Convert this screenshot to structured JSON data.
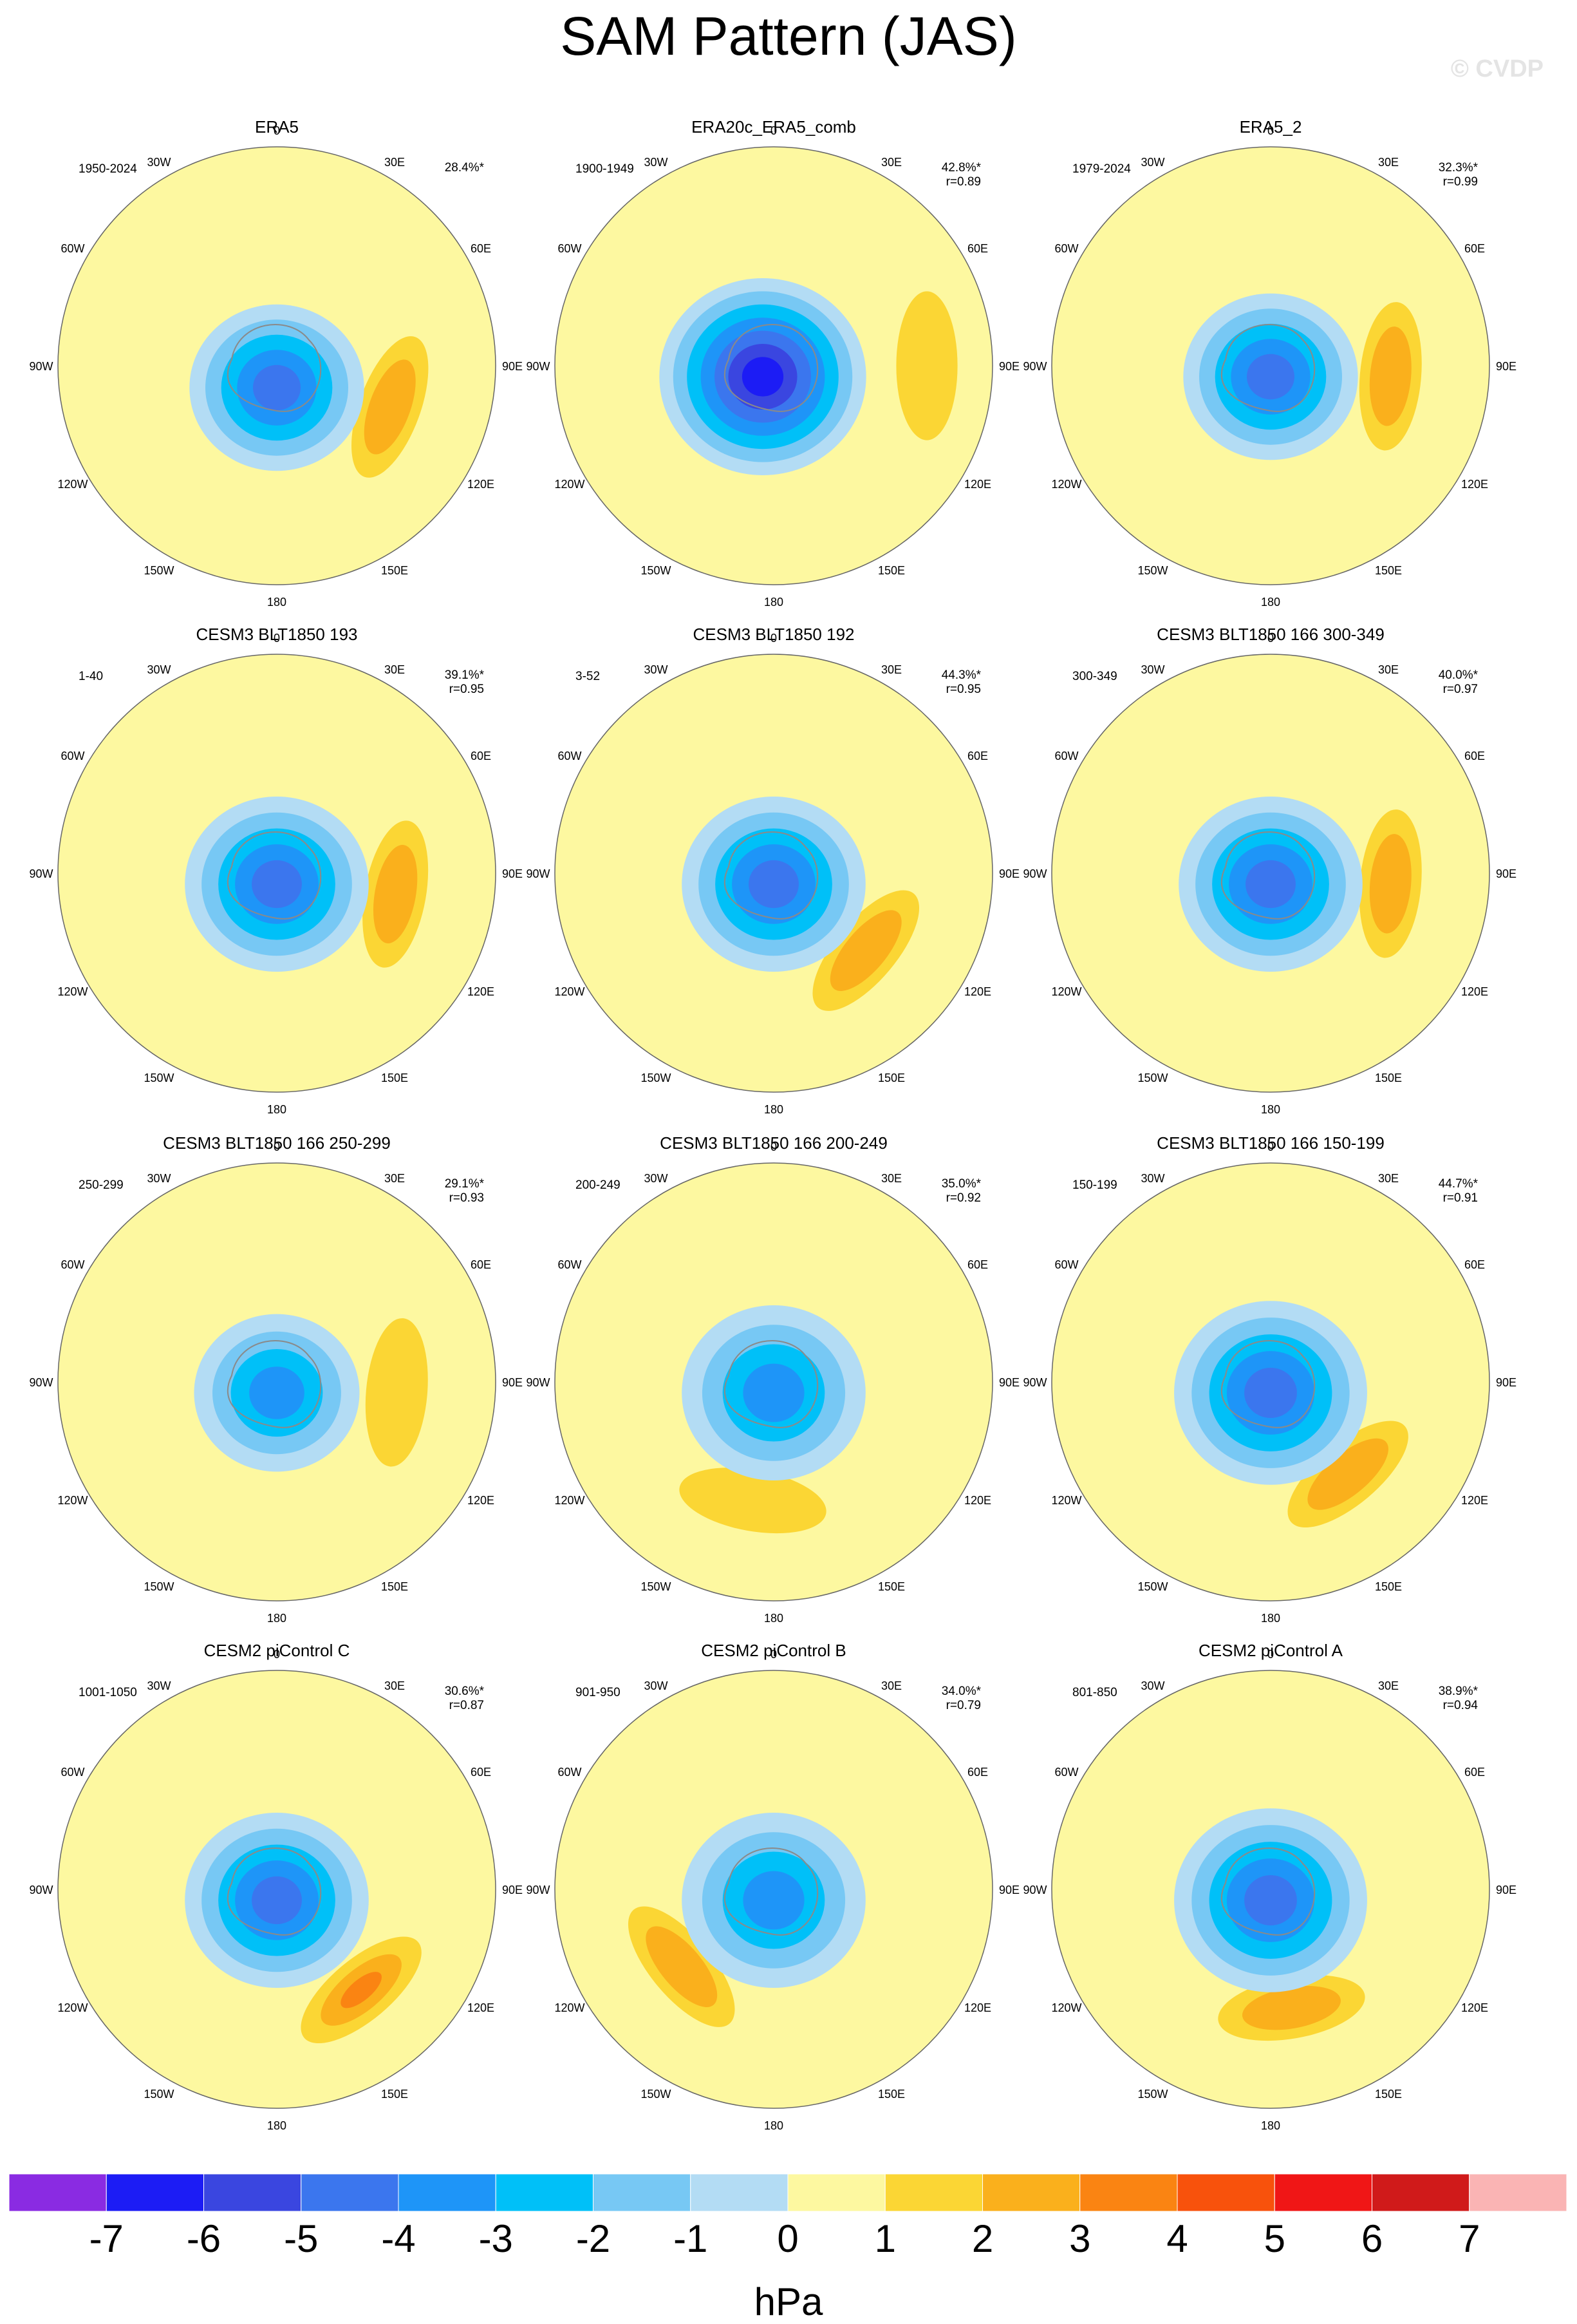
{
  "title": "SAM Pattern (JAS)",
  "credit": "© CVDP",
  "colors": {
    "levels": [
      "#8a2be2",
      "#1c1cf5",
      "#3a46e0",
      "#3b76ee",
      "#1e95f8",
      "#00c0f8",
      "#77c8f4",
      "#b3dcf4",
      "#fdf8a0",
      "#fbd634",
      "#fab01c",
      "#fa8412",
      "#f8520c",
      "#f01616",
      "#d01a1a",
      "#fab4b4"
    ],
    "coast": "#8a8a8a",
    "grid": "#666666"
  },
  "chart_data": {
    "type": "polar-contour",
    "units": "hPa",
    "colorbar": {
      "ticks": [
        "-7",
        "-6",
        "-5",
        "-4",
        "-3",
        "-2",
        "-1",
        "0",
        "1",
        "2",
        "3",
        "4",
        "5",
        "6",
        "7"
      ],
      "unit_label": "hPa"
    },
    "lon_labels": [
      "0",
      "30E",
      "60E",
      "90E",
      "120E",
      "150E",
      "180",
      "150W",
      "120W",
      "90W",
      "60W",
      "30W"
    ],
    "panels": [
      {
        "name": "ERA5",
        "years": "1950-2024",
        "pct": "28.4%*",
        "r": "",
        "low": {
          "x": 0.0,
          "y": 0.1,
          "r": 0.38,
          "min": -4
        },
        "high": {
          "ang": 110,
          "dist": 0.55,
          "max": 2
        }
      },
      {
        "name": "ERA20c_ERA5_comb",
        "years": "1900-1949",
        "pct": "42.8%*",
        "r": "r=0.89",
        "low": {
          "x": -0.05,
          "y": 0.05,
          "r": 0.45,
          "min": -6
        },
        "high": {
          "ang": 90,
          "dist": 0.7,
          "max": 1
        }
      },
      {
        "name": "ERA5_2",
        "years": "1979-2024",
        "pct": "32.3%*",
        "r": "r=0.99",
        "low": {
          "x": 0.0,
          "y": 0.05,
          "r": 0.38,
          "min": -4
        },
        "high": {
          "ang": 95,
          "dist": 0.55,
          "max": 2
        }
      },
      {
        "name": "CESM3 BLT1850 193",
        "years": "1-40",
        "pct": "39.1%*",
        "r": "r=0.95",
        "low": {
          "x": 0.0,
          "y": 0.05,
          "r": 0.4,
          "min": -4
        },
        "high": {
          "ang": 100,
          "dist": 0.55,
          "max": 2
        }
      },
      {
        "name": "CESM3 BLT1850 192",
        "years": "3-52",
        "pct": "44.3%*",
        "r": "r=0.95",
        "low": {
          "x": 0.0,
          "y": 0.05,
          "r": 0.4,
          "min": -4
        },
        "high": {
          "ang": 130,
          "dist": 0.55,
          "max": 2
        }
      },
      {
        "name": "CESM3 BLT1850 166 300-349",
        "years": "300-349",
        "pct": "40.0%*",
        "r": "r=0.97",
        "low": {
          "x": 0.0,
          "y": 0.05,
          "r": 0.4,
          "min": -4
        },
        "high": {
          "ang": 95,
          "dist": 0.55,
          "max": 2
        }
      },
      {
        "name": "CESM3 BLT1850 166 250-299",
        "years": "250-299",
        "pct": "29.1%*",
        "r": "r=0.93",
        "low": {
          "x": 0.0,
          "y": 0.05,
          "r": 0.36,
          "min": -3
        },
        "high": {
          "ang": 95,
          "dist": 0.55,
          "max": 1
        }
      },
      {
        "name": "CESM3 BLT1850 166 200-249",
        "years": "200-249",
        "pct": "35.0%*",
        "r": "r=0.92",
        "low": {
          "x": 0.0,
          "y": 0.05,
          "r": 0.4,
          "min": -3
        },
        "high": {
          "ang": 190,
          "dist": 0.55,
          "max": 1
        }
      },
      {
        "name": "CESM3 BLT1850 166 150-199",
        "years": "150-199",
        "pct": "44.7%*",
        "r": "r=0.91",
        "low": {
          "x": 0.0,
          "y": 0.05,
          "r": 0.42,
          "min": -4
        },
        "high": {
          "ang": 140,
          "dist": 0.55,
          "max": 2
        }
      },
      {
        "name": "CESM2 piControl C",
        "years": "1001-1050",
        "pct": "30.6%*",
        "r": "r=0.87",
        "low": {
          "x": 0.0,
          "y": 0.05,
          "r": 0.4,
          "min": -4
        },
        "high": {
          "ang": 140,
          "dist": 0.6,
          "max": 3
        }
      },
      {
        "name": "CESM2 piControl B",
        "years": "901-950",
        "pct": "34.0%*",
        "r": "r=0.79",
        "low": {
          "x": 0.0,
          "y": 0.05,
          "r": 0.4,
          "min": -3
        },
        "high": {
          "ang": 230,
          "dist": 0.55,
          "max": 2
        }
      },
      {
        "name": "CESM2 piControl A",
        "years": "801-850",
        "pct": "38.9%*",
        "r": "r=0.94",
        "low": {
          "x": 0.0,
          "y": 0.05,
          "r": 0.42,
          "min": -4
        },
        "high": {
          "ang": 170,
          "dist": 0.55,
          "max": 2
        }
      }
    ]
  }
}
